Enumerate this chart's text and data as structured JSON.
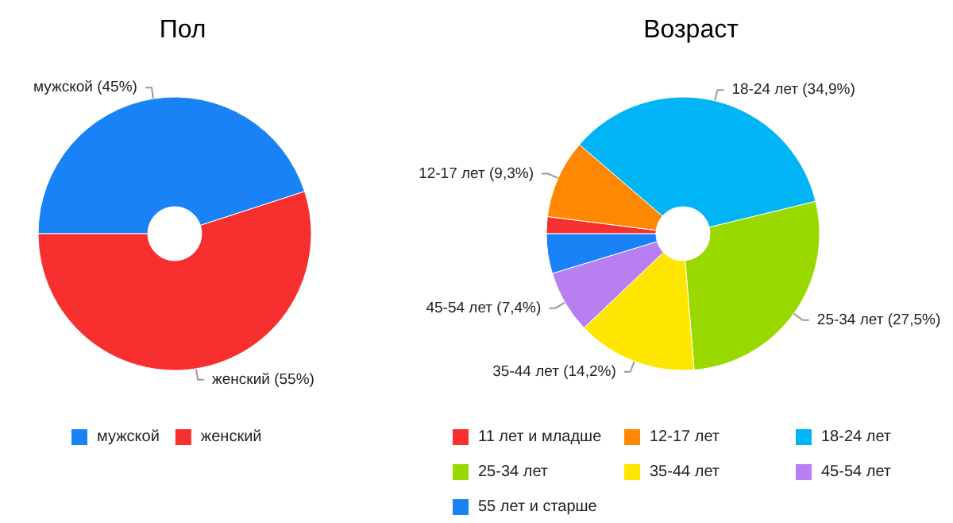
{
  "chart_data": [
    {
      "type": "donut",
      "title": "Пол",
      "categories": [
        "мужской",
        "женский"
      ],
      "values": [
        45,
        55
      ],
      "colors": [
        "#1a82f7",
        "#f7302f"
      ],
      "value_labels": [
        "(45%)",
        "(55%)"
      ],
      "legend": "bottom"
    },
    {
      "type": "donut",
      "title": "Возраст",
      "categories": [
        "11 лет и младше",
        "12-17 лет",
        "18-24 лет",
        "25-34 лет",
        "35-44 лет",
        "45-54 лет",
        "55 лет и старше"
      ],
      "values": [
        2.0,
        9.3,
        34.9,
        27.5,
        14.2,
        7.4,
        4.7
      ],
      "colors": [
        "#f7302f",
        "#ff8800",
        "#00b4f5",
        "#99d900",
        "#ffe600",
        "#b87ff0",
        "#1a82f7"
      ],
      "value_labels": [
        null,
        "(9,3%)",
        "(34,9%)",
        "(27,5%)",
        "(14,2%)",
        "(7,4%)",
        null
      ],
      "legend": "bottom"
    }
  ]
}
